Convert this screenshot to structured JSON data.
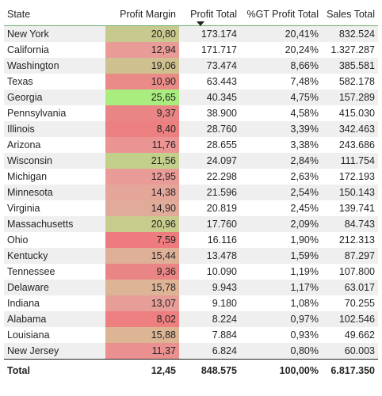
{
  "table": {
    "headers": {
      "state": "State",
      "margin": "Profit Margin",
      "profit": "Profit Total",
      "pct": "%GT Profit Total",
      "sales": "Sales Total"
    },
    "sorted_column": "Profit Total",
    "sort_direction": "descending",
    "rows": [
      {
        "state": "New York",
        "margin": "20,80",
        "profit": "173.174",
        "pct": "20,41%",
        "sales": "832.524",
        "color": "#c8c98e"
      },
      {
        "state": "California",
        "margin": "12,94",
        "profit": "171.717",
        "pct": "20,24%",
        "sales": "1.327.287",
        "color": "#e99b98"
      },
      {
        "state": "Washington",
        "margin": "19,06",
        "profit": "73.474",
        "pct": "8,66%",
        "sales": "385.581",
        "color": "#cfc08f"
      },
      {
        "state": "Texas",
        "margin": "10,90",
        "profit": "63.443",
        "pct": "7,48%",
        "sales": "582.178",
        "color": "#ea8b88"
      },
      {
        "state": "Georgia",
        "margin": "25,65",
        "profit": "40.345",
        "pct": "4,75%",
        "sales": "157.289",
        "color": "#a9ed7e"
      },
      {
        "state": "Pennsylvania",
        "margin": "9,37",
        "profit": "38.900",
        "pct": "4,58%",
        "sales": "415.030",
        "color": "#ea8585"
      },
      {
        "state": "Illinois",
        "margin": "8,40",
        "profit": "28.760",
        "pct": "3,39%",
        "sales": "342.463",
        "color": "#ec8080"
      },
      {
        "state": "Arizona",
        "margin": "11,76",
        "profit": "28.655",
        "pct": "3,38%",
        "sales": "243.686",
        "color": "#ea9494"
      },
      {
        "state": "Wisconsin",
        "margin": "21,56",
        "profit": "24.097",
        "pct": "2,84%",
        "sales": "111.754",
        "color": "#c3d08b"
      },
      {
        "state": "Michigan",
        "margin": "12,95",
        "profit": "22.298",
        "pct": "2,63%",
        "sales": "172.193",
        "color": "#e99b98"
      },
      {
        "state": "Minnesota",
        "margin": "14,38",
        "profit": "21.596",
        "pct": "2,54%",
        "sales": "150.143",
        "color": "#e5a69a"
      },
      {
        "state": "Virginia",
        "margin": "14,90",
        "profit": "20.819",
        "pct": "2,45%",
        "sales": "139.741",
        "color": "#e1ab99"
      },
      {
        "state": "Massachusetts",
        "margin": "20,96",
        "profit": "17.760",
        "pct": "2,09%",
        "sales": "84.743",
        "color": "#c7cc8d"
      },
      {
        "state": "Ohio",
        "margin": "7,59",
        "profit": "16.116",
        "pct": "1,90%",
        "sales": "212.313",
        "color": "#ee7c7e"
      },
      {
        "state": "Kentucky",
        "margin": "15,44",
        "profit": "13.478",
        "pct": "1,59%",
        "sales": "87.297",
        "color": "#dfb098"
      },
      {
        "state": "Tennessee",
        "margin": "9,36",
        "profit": "10.090",
        "pct": "1,19%",
        "sales": "107.800",
        "color": "#ea8585"
      },
      {
        "state": "Delaware",
        "margin": "15,78",
        "profit": "9.943",
        "pct": "1,17%",
        "sales": "63.017",
        "color": "#ddb496"
      },
      {
        "state": "Indiana",
        "margin": "13,07",
        "profit": "9.180",
        "pct": "1,08%",
        "sales": "70.255",
        "color": "#e89e98"
      },
      {
        "state": "Alabama",
        "margin": "8,02",
        "profit": "8.224",
        "pct": "0,97%",
        "sales": "102.546",
        "color": "#ed7f80"
      },
      {
        "state": "Louisiana",
        "margin": "15,88",
        "profit": "7.884",
        "pct": "0,93%",
        "sales": "49.662",
        "color": "#dcb595"
      },
      {
        "state": "New Jersey",
        "margin": "11,37",
        "profit": "6.824",
        "pct": "0,80%",
        "sales": "60.003",
        "color": "#ea9090"
      }
    ],
    "total": {
      "state": "Total",
      "margin": "12,45",
      "profit": "848.575",
      "pct": "100,00%",
      "sales": "6.817.350"
    }
  }
}
